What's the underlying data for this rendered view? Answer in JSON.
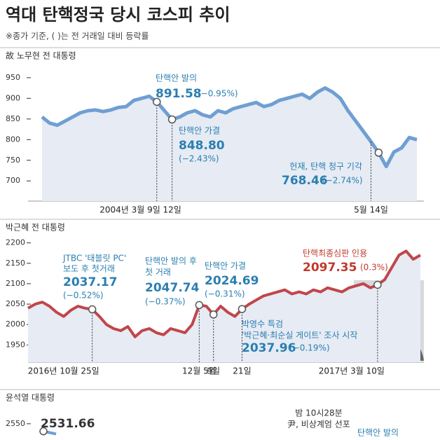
{
  "title": "역대 탄핵정국 당시 코스피 추이",
  "subtitle": "※종가 기준, ( )는 전 거래일 대비 등락률",
  "chart_data": [
    {
      "type": "line",
      "title": "故 노무현 전 대통령",
      "color": "#6f9fd2",
      "categories": [
        null,
        null,
        null,
        null,
        null,
        null,
        null,
        null,
        null,
        null,
        null,
        null,
        null,
        null,
        null,
        "2004년 3월 9일",
        null,
        "12일",
        null,
        null,
        null,
        null,
        null,
        null,
        null,
        null,
        null,
        null,
        null,
        null,
        null,
        null,
        null,
        null,
        null,
        null,
        null,
        null,
        null,
        null,
        null,
        null,
        null,
        "5월 14일",
        null,
        null,
        null,
        null,
        null,
        null
      ],
      "values": [
        855,
        840,
        835,
        845,
        855,
        865,
        870,
        872,
        868,
        872,
        878,
        880,
        895,
        900,
        905,
        891.58,
        870,
        848.8,
        855,
        865,
        870,
        860,
        855,
        870,
        865,
        875,
        880,
        885,
        890,
        880,
        885,
        895,
        900,
        905,
        910,
        900,
        915,
        925,
        915,
        900,
        870,
        845,
        820,
        795,
        768.46,
        735,
        770,
        780,
        805,
        800
      ],
      "ylim": [
        680,
        960
      ],
      "yticks": [
        700,
        750,
        800,
        850,
        900,
        950
      ],
      "annotations": [
        {
          "lines": [
            "탄핵안 발의"
          ],
          "value": 891.58,
          "change": "(−0.95%)"
        },
        {
          "lines": [
            "탄핵안 가결"
          ],
          "value": 848.8,
          "value_label": "848.80",
          "change": "(−2.43%)"
        },
        {
          "lines": [
            "헌재, 탄핵 청구 기각"
          ],
          "value": 768.46,
          "change": "(−2.74%)"
        }
      ]
    },
    {
      "type": "line",
      "title": "박근혜 전 대통령",
      "color": "#c1464a",
      "categories": [
        null,
        null,
        null,
        null,
        null,
        null,
        null,
        null,
        null,
        "2016년 10월 25일",
        null,
        null,
        null,
        null,
        null,
        null,
        null,
        null,
        null,
        null,
        null,
        null,
        null,
        null,
        "12월 5일",
        null,
        "9일",
        null,
        null,
        null,
        "21일",
        null,
        null,
        null,
        null,
        null,
        null,
        null,
        null,
        null,
        null,
        null,
        null,
        null,
        null,
        null,
        null,
        null,
        null,
        "2017년 3월 10일",
        null,
        null,
        null,
        null,
        null,
        null
      ],
      "values": [
        2040,
        2050,
        2055,
        2045,
        2030,
        2020,
        2035,
        2045,
        2040,
        2037.17,
        2020,
        2000,
        1990,
        1985,
        1995,
        1970,
        1985,
        1990,
        1980,
        1975,
        1990,
        1985,
        1980,
        2000,
        2047.74,
        2045,
        2024.69,
        2045,
        2030,
        2020,
        2037.96,
        2050,
        2060,
        2070,
        2075,
        2080,
        2085,
        2075,
        2080,
        2075,
        2085,
        2080,
        2090,
        2085,
        2080,
        2090,
        2095,
        2100,
        2090,
        2097.35,
        2110,
        2140,
        2170,
        2180,
        2160,
        2170
      ],
      "ylim": [
        1930,
        2220
      ],
      "yticks": [
        1950,
        2000,
        2050,
        2100,
        2150,
        2200
      ],
      "annotations": [
        {
          "lines": [
            "JTBC '태블릿 PC'",
            "보도 후 첫거래"
          ],
          "value": 2037.17,
          "change": "(−0.52%)"
        },
        {
          "lines": [
            "탄핵안 발의 후",
            "첫 거래"
          ],
          "value": 2047.74,
          "change": "(−0.37%)"
        },
        {
          "lines": [
            "탄핵안 가결"
          ],
          "value": 2024.69,
          "change": "(−0.31%)"
        },
        {
          "lines": [
            "박영수 특검",
            "'박근혜·최순실 게이트' 조사 시작"
          ],
          "value": 2037.96,
          "change": "(−0.19%)"
        },
        {
          "lines": [
            "탄핵최종심판 인용"
          ],
          "value": 2097.35,
          "change": "(0.3%)"
        }
      ]
    },
    {
      "type": "line",
      "title": "윤석열 대통령",
      "color": "#6f9fd2",
      "categories": [
        null,
        null
      ],
      "values": [
        2531.66,
        2525
      ],
      "ylim": [
        2500,
        2560
      ],
      "yticks": [
        2550
      ],
      "annotations": [
        {
          "lines": [],
          "value": 2531.66
        },
        {
          "lines": [
            "밤 10시28분",
            "尹, 비상계엄 선포"
          ]
        },
        {
          "lines": [
            "탄핵안 발의"
          ]
        }
      ]
    }
  ]
}
